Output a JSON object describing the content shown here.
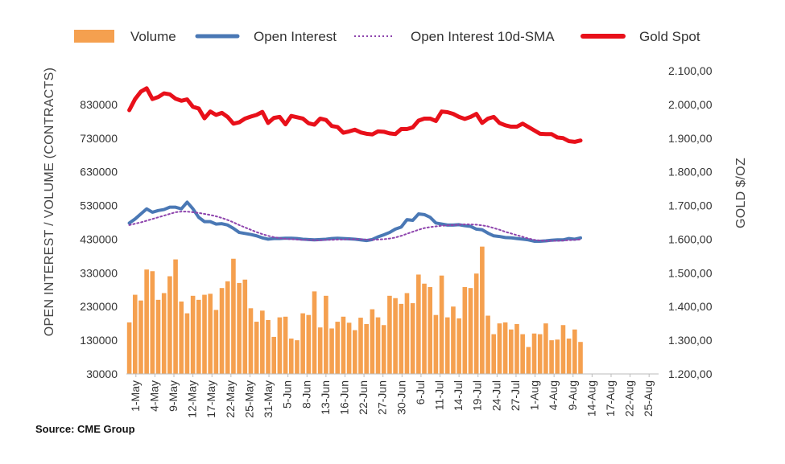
{
  "source_label": "Source: CME Group",
  "colors": {
    "volume": "#F5A04F",
    "open_interest": "#4A78B5",
    "sma": "#8E44AD",
    "gold": "#E8101A",
    "grid": "#DDDDDD"
  },
  "chart_data": {
    "type": "bar",
    "ylabel": "OPEN INTEREST / VOLUME (CONTRACTS)",
    "y2label": "GOLD $/OZ",
    "ylim": [
      30000,
      930000
    ],
    "y2lim": [
      1200,
      2100
    ],
    "yticks": [
      "30000",
      "130000",
      "230000",
      "330000",
      "430000",
      "530000",
      "630000",
      "730000",
      "830000"
    ],
    "y2ticks": [
      "1.200,00",
      "1.300,00",
      "1.400,00",
      "1.500,00",
      "1.600,00",
      "1.700,00",
      "1.800,00",
      "1.900,00",
      "2.000,00",
      "2.100,00"
    ],
    "xticks": [
      "1-May",
      "4-May",
      "9-May",
      "12-May",
      "17-May",
      "22-May",
      "25-May",
      "31-May",
      "5-Jun",
      "8-Jun",
      "13-Jun",
      "16-Jun",
      "22-Jun",
      "27-Jun",
      "30-Jun",
      "6-Jul",
      "11-Jul",
      "14-Jul",
      "19-Jul",
      "24-Jul",
      "27-Jul",
      "1-Aug",
      "4-Aug",
      "9-Aug",
      "14-Aug",
      "17-Aug",
      "22-Aug",
      "25-Aug"
    ],
    "legend_placement": "top",
    "series": [
      {
        "name": "Volume",
        "kind": "bar",
        "values": [
          183000,
          265000,
          248000,
          340000,
          335000,
          250000,
          270000,
          320000,
          370000,
          245000,
          210000,
          262000,
          250000,
          265000,
          268000,
          220000,
          285000,
          305000,
          372000,
          300000,
          310000,
          225000,
          185000,
          218000,
          190000,
          140000,
          198000,
          200000,
          135000,
          130000,
          210000,
          205000,
          275000,
          168000,
          262000,
          165000,
          185000,
          200000,
          182000,
          160000,
          197000,
          178000,
          222000,
          198000,
          175000,
          262000,
          255000,
          238000,
          270000,
          240000,
          325000,
          298000,
          288000,
          205000,
          322000,
          198000,
          230000,
          195000,
          288000,
          285000,
          328000,
          408000,
          203000,
          148000,
          180000,
          183000,
          162000,
          178000,
          148000,
          110000,
          150000,
          148000,
          180000,
          130000,
          132000,
          175000,
          135000,
          162000,
          125000
        ]
      },
      {
        "name": "Open Interest",
        "kind": "line",
        "values": [
          478000,
          490000,
          505000,
          520000,
          510000,
          515000,
          518000,
          525000,
          525000,
          520000,
          540000,
          520000,
          495000,
          482000,
          482000,
          475000,
          476000,
          472000,
          462000,
          450000,
          447000,
          444000,
          440000,
          434000,
          430000,
          432000,
          432000,
          433000,
          433000,
          432000,
          430000,
          429000,
          428000,
          429000,
          430000,
          432000,
          433000,
          432000,
          431000,
          430000,
          428000,
          426000,
          429000,
          437000,
          443000,
          450000,
          460000,
          466000,
          488000,
          486000,
          505000,
          503000,
          495000,
          478000,
          475000,
          472000,
          472000,
          473000,
          470000,
          468000,
          460000,
          458000,
          448000,
          440000,
          438000,
          435000,
          434000,
          432000,
          430000,
          428000,
          424000,
          424000,
          425000,
          427000,
          428000,
          428000,
          432000,
          430000,
          434000
        ]
      },
      {
        "name": "Open Interest 10d-SMA",
        "kind": "line",
        "values": [
          472000,
          476000,
          480000,
          485000,
          490000,
          495000,
          500000,
          505000,
          510000,
          512000,
          512000,
          510000,
          508000,
          505000,
          502000,
          498000,
          493000,
          487000,
          480000,
          472000,
          465000,
          458000,
          451000,
          445000,
          440000,
          436000,
          433000,
          431000,
          430000,
          429000,
          428000,
          428000,
          427000,
          427000,
          428000,
          428000,
          429000,
          429000,
          430000,
          430000,
          430000,
          429000,
          428000,
          429000,
          430000,
          432000,
          435000,
          440000,
          446000,
          452000,
          458000,
          463000,
          466000,
          468000,
          470000,
          471000,
          472000,
          473000,
          474000,
          474000,
          473000,
          471000,
          468000,
          463000,
          458000,
          452000,
          447000,
          442000,
          437000,
          432000,
          428000,
          426000,
          425000,
          425000,
          425000,
          426000,
          427000,
          428000,
          429000
        ]
      },
      {
        "name": "Gold Spot",
        "kind": "line",
        "values": [
          1983,
          2016,
          2038,
          2048,
          2016,
          2022,
          2033,
          2030,
          2017,
          2011,
          2015,
          1993,
          1988,
          1959,
          1979,
          1969,
          1975,
          1963,
          1943,
          1947,
          1958,
          1964,
          1969,
          1978,
          1945,
          1960,
          1963,
          1941,
          1966,
          1962,
          1958,
          1944,
          1940,
          1958,
          1954,
          1936,
          1933,
          1916,
          1920,
          1925,
          1917,
          1913,
          1911,
          1920,
          1919,
          1914,
          1912,
          1927,
          1927,
          1932,
          1952,
          1958,
          1958,
          1951,
          1979,
          1977,
          1972,
          1963,
          1957,
          1963,
          1972,
          1945,
          1958,
          1963,
          1945,
          1938,
          1934,
          1934,
          1943,
          1933,
          1923,
          1913,
          1912,
          1912,
          1902,
          1900,
          1891,
          1889,
          1893
        ]
      }
    ]
  }
}
